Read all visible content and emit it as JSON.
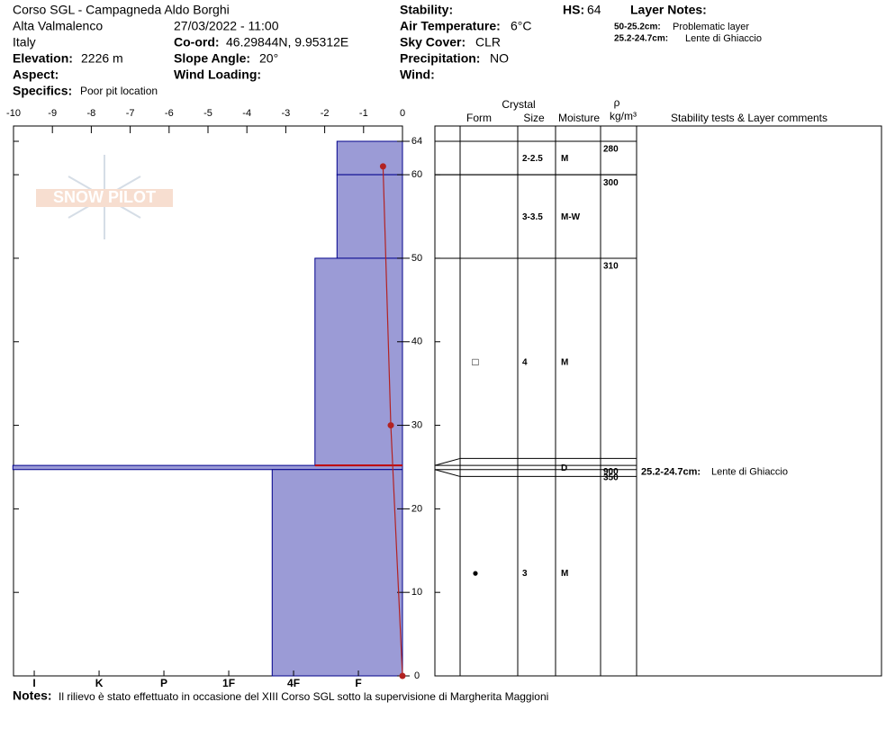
{
  "header": {
    "title": "Corso SGL - Campagneda Aldo Borghi",
    "location": "Alta Valmalenco",
    "country": "Italy",
    "elevation": {
      "label": "Elevation:",
      "value": "2226 m"
    },
    "aspect": {
      "label": "Aspect:"
    },
    "specifics": {
      "label": "Specifics:",
      "value": "Poor pit location"
    },
    "datetime": "27/03/2022 - 11:00",
    "coord": {
      "label": "Co-ord:",
      "value": "46.29844N, 9.95312E"
    },
    "slope": {
      "label": "Slope Angle:",
      "value": "20°"
    },
    "wind_loading": {
      "label": "Wind Loading:"
    },
    "stability": {
      "label": "Stability:"
    },
    "air_temp": {
      "label": "Air Temperature:",
      "value": "6°C"
    },
    "sky": {
      "label": "Sky Cover:",
      "value": "CLR"
    },
    "precip": {
      "label": "Precipitation:",
      "value": "NO"
    },
    "wind": {
      "label": "Wind:"
    },
    "hs": {
      "label": "HS:",
      "value": 64
    },
    "layer_notes": {
      "title": "Layer Notes:",
      "items": [
        {
          "range": "50-25.2cm:",
          "text": "Problematic layer"
        },
        {
          "range": "25.2-24.7cm:",
          "text": "Lente di Ghiaccio"
        }
      ]
    }
  },
  "watermark": "SNOW PILOT",
  "table": {
    "headers": {
      "crystal": "Crystal",
      "form": "Form",
      "size": "Size",
      "moisture": "Moisture",
      "density_symbol": "ρ",
      "density_unit": "kg/m³",
      "comments": "Stability tests & Layer comments"
    }
  },
  "chart_data": {
    "type": "snow-profile",
    "xlim": [
      -10,
      0
    ],
    "xticks": [
      -10,
      -9,
      -8,
      -7,
      -6,
      -5,
      -4,
      -3,
      -2,
      -1,
      0
    ],
    "ylim": [
      0,
      64
    ],
    "yticks": [
      0,
      10,
      20,
      30,
      40,
      50,
      60,
      64
    ],
    "hardness_lim": [
      6.32,
      0.32
    ],
    "hardness_ticks": [
      {
        "value": 6,
        "label": "I"
      },
      {
        "value": 5,
        "label": "K"
      },
      {
        "value": 4,
        "label": "P"
      },
      {
        "value": 3,
        "label": "1F"
      },
      {
        "value": 2,
        "label": "4F"
      },
      {
        "value": 1,
        "label": "F"
      }
    ],
    "hardness_color": "#9b9bd6",
    "layers": [
      {
        "top": 64,
        "bottom": 60,
        "hardness": 1.33,
        "size": "2-2.5",
        "moisture": "M",
        "density": 280
      },
      {
        "top": 60,
        "bottom": 50,
        "hardness": 1.33,
        "size": "3-3.5",
        "moisture": "M-W",
        "density": 300
      },
      {
        "top": 50,
        "bottom": 25.2,
        "hardness": 1.67,
        "form": "□",
        "size": "4",
        "moisture": "M",
        "density": 310
      },
      {
        "top": 25.2,
        "bottom": 24.7,
        "hardness": 6.33,
        "moisture": "D",
        "density": 900,
        "comment": {
          "range": "25.2-24.7cm:",
          "text": "Lente di Ghiaccio"
        }
      },
      {
        "top": 24.7,
        "bottom": 0,
        "hardness": 2.33,
        "form": "●",
        "size": "3",
        "moisture": "M",
        "density": 350
      }
    ],
    "problem_marker": {
      "height": 25.2,
      "color": "#c00000"
    },
    "temperature": {
      "heights": [
        61,
        30,
        0
      ],
      "values": [
        -0.5,
        -0.3,
        0
      ],
      "color": "#b22222"
    }
  },
  "notes": {
    "label": "Notes:",
    "text": "Il rilievo è stato effettuato in occasione del XIII Corso SGL sotto la supervisione  di Margherita Maggioni"
  }
}
